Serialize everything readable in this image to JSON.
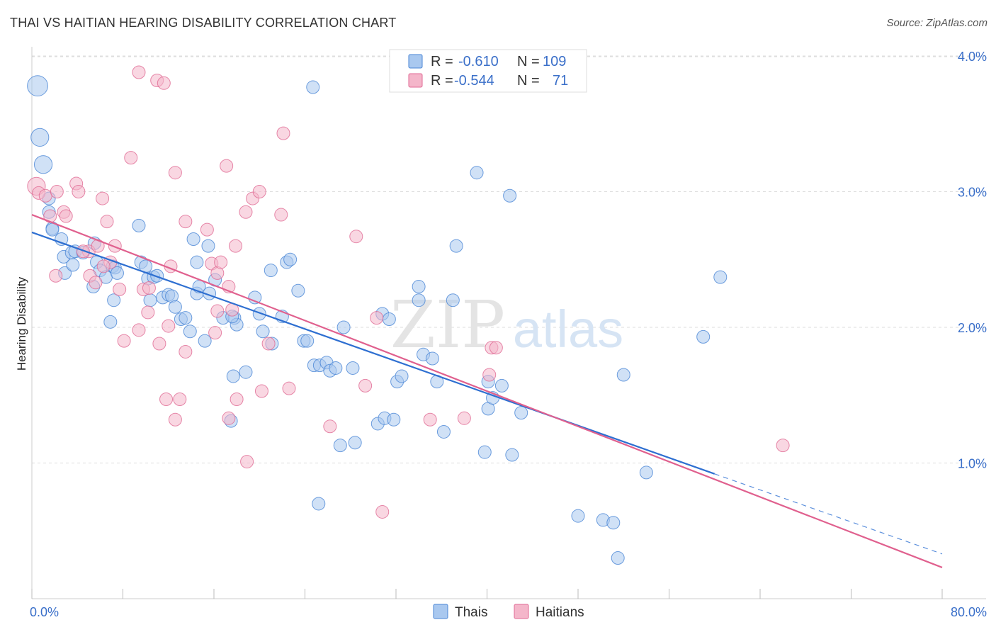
{
  "title": "THAI VS HAITIAN HEARING DISABILITY CORRELATION CHART",
  "source": "Source: ZipAtlas.com",
  "watermark": {
    "zip": "ZIP",
    "atlas": "atlas"
  },
  "colors": {
    "thai": "#4a86d6",
    "thai_fill": "#a9c8ef",
    "haitian": "#e06a94",
    "haitian_fill": "#f4b6ca",
    "axis_label": "#3a6fc9",
    "grid": "#dddddd"
  },
  "legend": {
    "rows": [
      {
        "r_label": "R =",
        "r_value": "-0.610",
        "n_label": "N =",
        "n_value": "109"
      },
      {
        "r_label": "R =",
        "r_value": "-0.544",
        "n_label": "N =",
        "n_value": "71"
      }
    ]
  },
  "chart_data": {
    "type": "scatter",
    "xlabel": "",
    "ylabel": "Hearing Disability",
    "xlim": [
      0,
      80
    ],
    "ylim": [
      0,
      4.2
    ],
    "x_tick_labels": [
      "0.0%",
      "80.0%"
    ],
    "y_ticks": [
      1.0,
      2.0,
      3.0,
      4.0
    ],
    "y_tick_labels": [
      "1.0%",
      "2.0%",
      "3.0%",
      "4.0%"
    ],
    "grid": true,
    "legend_placement": "bottom-center",
    "series": [
      {
        "name": "Thais",
        "trend": {
          "x0": 0,
          "y0": 2.7,
          "x1": 60,
          "y1": 0.92,
          "dash_to_x": 80,
          "dash_to_y": 0.33
        },
        "points": [
          [
            0.5,
            3.78,
            1.6
          ],
          [
            0.7,
            3.4,
            1.4
          ],
          [
            1.0,
            3.2,
            1.4
          ],
          [
            1.5,
            2.95,
            1
          ],
          [
            1.5,
            2.85,
            1
          ],
          [
            1.8,
            2.73,
            1
          ],
          [
            1.8,
            2.72,
            1
          ],
          [
            2.6,
            2.65,
            1
          ],
          [
            2.8,
            2.52,
            1
          ],
          [
            2.9,
            2.4,
            1
          ],
          [
            3.5,
            2.55,
            1
          ],
          [
            3.8,
            2.56,
            1
          ],
          [
            3.6,
            2.46,
            1
          ],
          [
            4.5,
            2.55,
            1
          ],
          [
            5.5,
            2.62,
            1
          ],
          [
            5.7,
            2.48,
            1
          ],
          [
            6.0,
            2.42,
            1
          ],
          [
            5.4,
            2.3,
            1
          ],
          [
            6.5,
            2.37,
            1
          ],
          [
            7.1,
            2.45,
            1
          ],
          [
            7.3,
            2.44,
            1
          ],
          [
            7.5,
            2.4,
            1
          ],
          [
            9.4,
            2.75,
            1
          ],
          [
            9.6,
            2.48,
            1
          ],
          [
            10.0,
            2.45,
            1
          ],
          [
            10.2,
            2.36,
            1
          ],
          [
            10.7,
            2.37,
            1
          ],
          [
            11.0,
            2.38,
            1
          ],
          [
            7.2,
            2.2,
            1
          ],
          [
            10.4,
            2.2,
            1
          ],
          [
            11.5,
            2.22,
            1
          ],
          [
            12.0,
            2.24,
            1
          ],
          [
            12.3,
            2.23,
            1
          ],
          [
            6.9,
            2.04,
            1
          ],
          [
            12.6,
            2.15,
            1
          ],
          [
            13.1,
            2.06,
            1
          ],
          [
            13.5,
            2.07,
            1
          ],
          [
            14.5,
            2.25,
            1
          ],
          [
            14.7,
            2.3,
            1
          ],
          [
            15.6,
            2.25,
            1
          ],
          [
            16.1,
            2.35,
            1
          ],
          [
            15.5,
            2.6,
            1
          ],
          [
            14.5,
            2.48,
            1
          ],
          [
            14.2,
            2.65,
            1
          ],
          [
            13.9,
            1.97,
            1
          ],
          [
            15.2,
            1.9,
            1
          ],
          [
            16.8,
            2.07,
            1
          ],
          [
            17.8,
            2.07,
            1
          ],
          [
            18.0,
            2.02,
            1
          ],
          [
            17.6,
            2.08,
            1
          ],
          [
            19.6,
            2.22,
            1
          ],
          [
            20.0,
            2.1,
            1
          ],
          [
            20.3,
            1.97,
            1
          ],
          [
            21.0,
            2.42,
            1
          ],
          [
            21.1,
            1.88,
            1
          ],
          [
            22.0,
            2.08,
            1
          ],
          [
            22.4,
            2.48,
            1
          ],
          [
            22.7,
            2.5,
            1
          ],
          [
            23.4,
            2.27,
            1
          ],
          [
            23.9,
            1.9,
            1
          ],
          [
            24.2,
            1.9,
            1
          ],
          [
            24.7,
            3.77,
            1
          ],
          [
            24.8,
            1.72,
            1
          ],
          [
            25.3,
            1.72,
            1
          ],
          [
            25.9,
            1.74,
            1
          ],
          [
            26.2,
            1.68,
            1
          ],
          [
            26.7,
            1.7,
            1
          ],
          [
            17.7,
            1.64,
            1
          ],
          [
            18.8,
            1.67,
            1
          ],
          [
            17.5,
            1.31,
            1
          ],
          [
            28.2,
            1.7,
            1
          ],
          [
            27.4,
            2.0,
            1
          ],
          [
            30.8,
            2.1,
            1
          ],
          [
            31.4,
            2.06,
            1
          ],
          [
            32.1,
            1.6,
            1
          ],
          [
            32.5,
            1.64,
            1
          ],
          [
            34.0,
            2.3,
            1
          ],
          [
            34.0,
            2.2,
            1
          ],
          [
            34.4,
            1.8,
            1
          ],
          [
            35.2,
            1.77,
            1
          ],
          [
            35.6,
            1.6,
            1
          ],
          [
            37.3,
            2.6,
            1
          ],
          [
            37.0,
            2.2,
            1
          ],
          [
            39.1,
            3.14,
            1
          ],
          [
            40.1,
            1.6,
            1
          ],
          [
            40.1,
            1.4,
            1
          ],
          [
            40.5,
            1.48,
            1
          ],
          [
            41.3,
            1.57,
            1
          ],
          [
            43.0,
            1.37,
            1
          ],
          [
            39.8,
            1.08,
            1
          ],
          [
            42.2,
            1.06,
            1
          ],
          [
            30.4,
            1.29,
            1
          ],
          [
            31.0,
            1.33,
            1
          ],
          [
            31.8,
            1.32,
            1
          ],
          [
            36.2,
            1.23,
            1
          ],
          [
            27.1,
            1.13,
            1
          ],
          [
            28.4,
            1.15,
            1
          ],
          [
            25.2,
            0.7,
            1
          ],
          [
            42.0,
            2.97,
            1
          ],
          [
            52.0,
            1.65,
            1
          ],
          [
            48.0,
            0.61,
            1
          ],
          [
            50.2,
            0.58,
            1
          ],
          [
            51.1,
            0.56,
            1
          ],
          [
            51.5,
            0.3,
            1
          ],
          [
            54.0,
            0.93,
            1
          ],
          [
            59.0,
            1.93,
            1
          ],
          [
            60.5,
            2.37,
            1
          ]
        ]
      },
      {
        "name": "Haitians",
        "trend": {
          "x0": 0,
          "y0": 2.83,
          "x1": 80,
          "y1": 0.23
        },
        "points": [
          [
            0.4,
            3.04,
            1.4
          ],
          [
            0.6,
            2.99,
            1
          ],
          [
            1.2,
            2.97,
            1
          ],
          [
            2.2,
            3.0,
            1
          ],
          [
            1.6,
            2.82,
            1
          ],
          [
            2.8,
            2.85,
            1
          ],
          [
            3.0,
            2.82,
            1
          ],
          [
            3.9,
            3.06,
            1
          ],
          [
            4.1,
            3.0,
            1
          ],
          [
            5.0,
            2.56,
            1
          ],
          [
            6.2,
            2.95,
            1
          ],
          [
            6.6,
            2.78,
            1
          ],
          [
            7.3,
            2.6,
            1
          ],
          [
            6.9,
            2.48,
            1
          ],
          [
            5.1,
            2.38,
            1
          ],
          [
            5.6,
            2.33,
            1
          ],
          [
            2.1,
            2.38,
            1
          ],
          [
            4.5,
            2.56,
            1
          ],
          [
            5.8,
            2.6,
            1
          ],
          [
            6.3,
            2.45,
            1
          ],
          [
            7.7,
            2.28,
            1
          ],
          [
            9.4,
            3.88,
            1
          ],
          [
            11.0,
            3.82,
            1
          ],
          [
            11.6,
            3.8,
            1
          ],
          [
            8.7,
            3.25,
            1
          ],
          [
            12.6,
            3.14,
            1
          ],
          [
            13.5,
            2.78,
            1
          ],
          [
            12.2,
            2.45,
            1
          ],
          [
            9.8,
            2.28,
            1
          ],
          [
            10.3,
            2.29,
            1
          ],
          [
            10.2,
            2.11,
            1
          ],
          [
            12.0,
            2.01,
            1
          ],
          [
            13.5,
            1.82,
            1
          ],
          [
            15.4,
            2.72,
            1
          ],
          [
            15.8,
            2.47,
            1
          ],
          [
            16.3,
            2.4,
            1
          ],
          [
            16.6,
            2.48,
            1
          ],
          [
            17.3,
            2.3,
            1
          ],
          [
            16.3,
            2.12,
            1
          ],
          [
            16.1,
            1.96,
            1
          ],
          [
            17.9,
            2.6,
            1
          ],
          [
            17.6,
            2.13,
            1
          ],
          [
            18.8,
            2.85,
            1
          ],
          [
            19.4,
            2.95,
            1
          ],
          [
            20.0,
            3.0,
            1
          ],
          [
            17.1,
            3.19,
            1
          ],
          [
            22.1,
            3.43,
            1
          ],
          [
            21.9,
            2.83,
            1
          ],
          [
            20.8,
            1.88,
            1
          ],
          [
            22.6,
            1.55,
            1
          ],
          [
            20.2,
            1.53,
            1
          ],
          [
            18.0,
            1.47,
            1
          ],
          [
            17.3,
            1.33,
            1
          ],
          [
            18.9,
            1.01,
            1
          ],
          [
            11.2,
            1.88,
            1
          ],
          [
            9.4,
            1.98,
            1
          ],
          [
            11.8,
            1.47,
            1
          ],
          [
            13.0,
            1.47,
            1
          ],
          [
            12.6,
            1.32,
            1
          ],
          [
            8.1,
            1.9,
            1
          ],
          [
            26.2,
            1.27,
            1
          ],
          [
            28.5,
            2.67,
            1
          ],
          [
            30.3,
            2.07,
            1
          ],
          [
            29.3,
            1.57,
            1
          ],
          [
            30.8,
            0.64,
            1
          ],
          [
            35.0,
            1.32,
            1
          ],
          [
            38.0,
            1.33,
            1
          ],
          [
            40.2,
            1.65,
            1
          ],
          [
            40.4,
            1.85,
            1
          ],
          [
            40.8,
            1.85,
            1
          ],
          [
            66.0,
            1.13,
            1
          ]
        ]
      }
    ]
  },
  "bottom_legend": [
    {
      "label": "Thais"
    },
    {
      "label": "Haitians"
    }
  ]
}
